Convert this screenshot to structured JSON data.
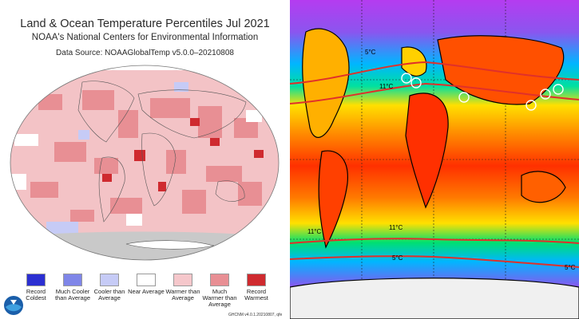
{
  "left_panel": {
    "title": "Land & Ocean Temperature Percentiles Jul 2021",
    "subtitle": "NOAA's National Centers for Environmental Information",
    "source": "Data Source: NOAAGlobalTemp v5.0.0–20210808",
    "legend": [
      {
        "label": "Record Coldest",
        "color": "#2b2fd1"
      },
      {
        "label": "Much Cooler than Average",
        "color": "#7f86e8"
      },
      {
        "label": "Cooler than Average",
        "color": "#c6cbf6"
      },
      {
        "label": "Near Average",
        "color": "#ffffff"
      },
      {
        "label": "Warmer than Average",
        "color": "#f5c7cb"
      },
      {
        "label": "Much Warmer than Average",
        "color": "#e88f94"
      },
      {
        "label": "Record Warmest",
        "color": "#cf2a2f"
      }
    ],
    "credit": "GHCNM v4.0.1.20210807, qfe",
    "logo": "noaa-logo"
  },
  "right_panel": {
    "isotherm_labels": [
      {
        "id": "5c-north",
        "text": "5°C"
      },
      {
        "id": "11c-north",
        "text": "11°C"
      },
      {
        "id": "11c-south-west",
        "text": "11°C"
      },
      {
        "id": "11c-south-mid",
        "text": "11°C"
      },
      {
        "id": "5c-south-mid",
        "text": "5°C"
      },
      {
        "id": "5c-south-east",
        "text": "5°C"
      }
    ],
    "colors": {
      "warm": "#ff3000",
      "mid": "#ffe000",
      "cool": "#00b6ff",
      "cold": "#b53cf0",
      "isotherm": "#e0302a"
    },
    "markers": "circle"
  }
}
